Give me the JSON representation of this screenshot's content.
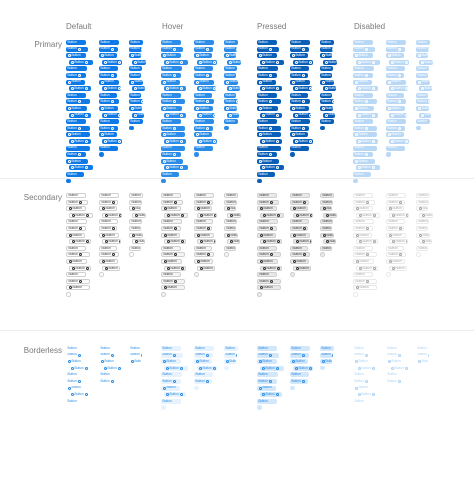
{
  "columns": [
    "Default",
    "Hover",
    "Pressed",
    "Disabled"
  ],
  "rows": [
    "Primary",
    "Secondary",
    "Borderless"
  ],
  "button_label": "Button",
  "colors": {
    "primary": {
      "default": "#0f7ae5",
      "hover": "#2b8de8",
      "pressed": "#0a5fb8",
      "disabled": "#b8d8f5"
    },
    "secondary_border": "#cfcfcf",
    "secondary_text": "#333333",
    "borderless_text": "#2b8de8",
    "borderless_hover_bg": "#e6f2fd"
  }
}
